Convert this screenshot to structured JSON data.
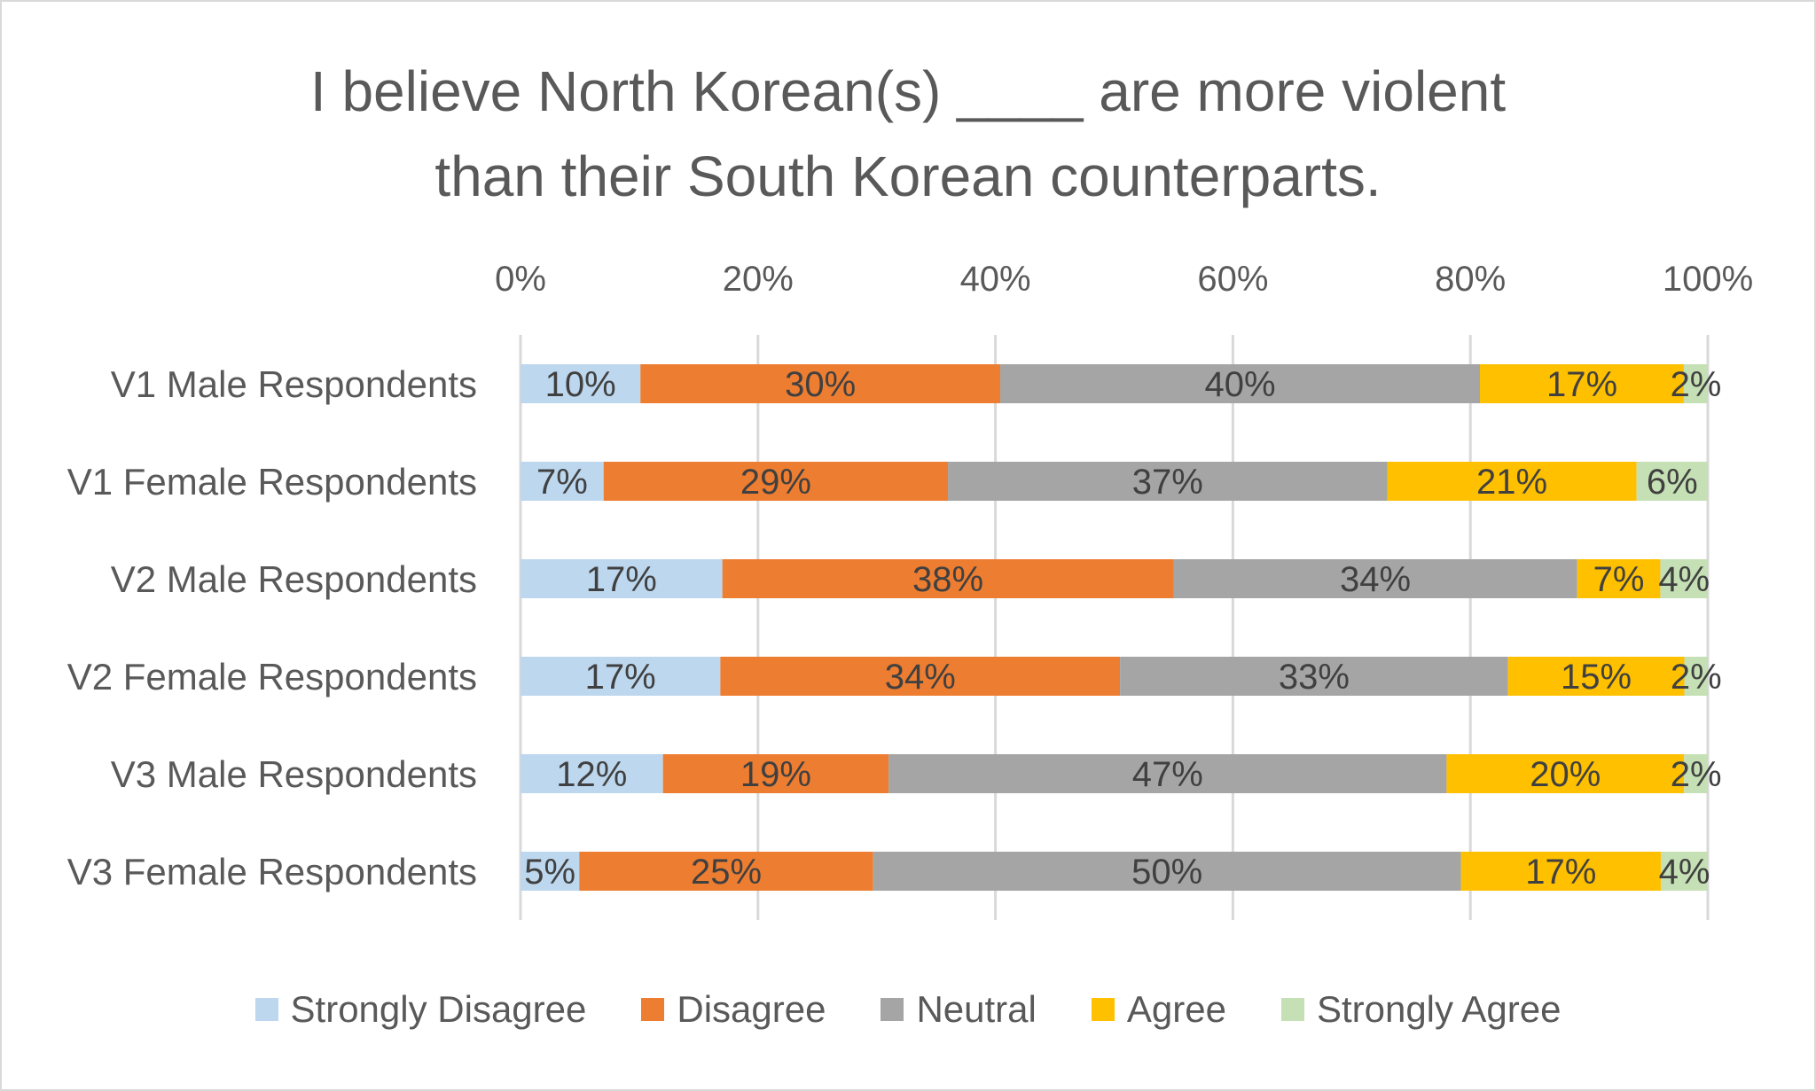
{
  "chart_data": {
    "type": "bar",
    "orientation": "horizontal",
    "stacked": "percent",
    "title": "I believe North Korean(s) ____ are more violent than their South Korean counterparts.",
    "title_lines": [
      "I believe North Korean(s) ____ are more violent",
      "than their South Korean counterparts."
    ],
    "categories": [
      "V1 Male Respondents",
      "V1 Female Respondents",
      "V2 Male Respondents",
      "V2 Female Respondents",
      "V3 Male Respondents",
      "V3 Female Respondents"
    ],
    "series": [
      {
        "name": "Strongly Disagree",
        "color": "#bdd7ee",
        "values": [
          10,
          7,
          17,
          17,
          12,
          5
        ],
        "labels": [
          "10%",
          "7%",
          "17%",
          "17%",
          "12%",
          "5%"
        ]
      },
      {
        "name": "Disagree",
        "color": "#ed7d31",
        "values": [
          30,
          29,
          38,
          34,
          19,
          25
        ],
        "labels": [
          "30%",
          "29%",
          "38%",
          "34%",
          "19%",
          "25%"
        ]
      },
      {
        "name": "Neutral",
        "color": "#a5a5a5",
        "values": [
          40,
          37,
          34,
          33,
          47,
          50
        ],
        "labels": [
          "40%",
          "37%",
          "34%",
          "33%",
          "47%",
          "50%"
        ]
      },
      {
        "name": "Agree",
        "color": "#ffc000",
        "values": [
          17,
          21,
          7,
          15,
          20,
          17
        ],
        "labels": [
          "17%",
          "21%",
          "7%",
          "15%",
          "20%",
          "17%"
        ]
      },
      {
        "name": "Strongly Agree",
        "color": "#c5e0b4",
        "values": [
          2,
          6,
          4,
          2,
          2,
          4
        ],
        "labels": [
          "2%",
          "6%",
          "4%",
          "2%",
          "2%",
          "4%"
        ]
      }
    ],
    "x_ticks": [
      "0%",
      "20%",
      "40%",
      "60%",
      "80%",
      "100%"
    ],
    "xlim": [
      0,
      100
    ],
    "x_axis_position": "top",
    "grid": true,
    "legend_position": "bottom"
  }
}
